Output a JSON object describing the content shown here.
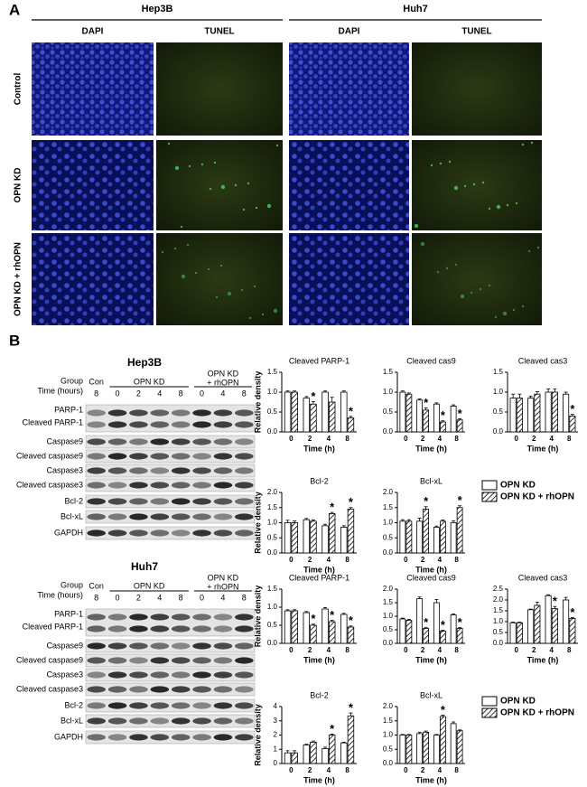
{
  "panel_a": {
    "label": "A",
    "cell_lines": [
      {
        "name": "Hep3B",
        "stains": [
          "DAPI",
          "TUNEL"
        ]
      },
      {
        "name": "Huh7",
        "stains": [
          "DAPI",
          "TUNEL"
        ]
      }
    ],
    "conditions": [
      "Control",
      "OPN KD",
      "OPN KD + rhOPN"
    ]
  },
  "panel_b": {
    "label": "B",
    "blots": [
      {
        "cell_line": "Hep3B",
        "group_label": "Group",
        "time_label": "Time (hours)",
        "groups": [
          [
            "Con"
          ],
          [
            "OPN KD"
          ],
          [
            "OPN KD",
            "+ rhOPN"
          ]
        ],
        "times": [
          "8",
          "0",
          "2",
          "4",
          "8",
          "0",
          "4",
          "8"
        ],
        "rows": [
          "PARP-1",
          "Cleaved PARP-1",
          "Caspase9",
          "Cleaved caspase9",
          "Caspase3",
          "Cleaved caspase3",
          "Bcl-2",
          "Bcl-xL",
          "GAPDH"
        ]
      },
      {
        "cell_line": "Huh7",
        "group_label": "Group",
        "time_label": "Time (hours)",
        "groups": [
          [
            "Con"
          ],
          [
            "OPN KD"
          ],
          [
            "OPN KD",
            "+ rhOPN"
          ]
        ],
        "times": [
          "8",
          "0",
          "2",
          "4",
          "8",
          "0",
          "4",
          "8"
        ],
        "rows": [
          "PARP-1",
          "Cleaved PARP-1",
          "Caspase9",
          "Cleaved caspase9",
          "Caspase3",
          "Cleaved caspase3",
          "Bcl-2",
          "Bcl-xL",
          "GAPDH"
        ]
      }
    ],
    "legends": [
      {
        "items": [
          "OPN KD",
          "OPN KD + rhOPN"
        ]
      },
      {
        "items": [
          "OPN KD",
          "OPN KD + rhOPN"
        ]
      }
    ]
  },
  "chart_data": [
    {
      "type": "bar",
      "title": "Cleaved PARP-1",
      "ylabel": "Relative density",
      "xlabel": "Time (h)",
      "categories": [
        "0",
        "2",
        "4",
        "8"
      ],
      "ylim": [
        0,
        1.5
      ],
      "yticks": [
        {
          "value": 0,
          "label": "0.0"
        },
        0.5,
        {
          "value": 1,
          "label": "1.0"
        },
        1.5
      ],
      "series": [
        {
          "color": "#ffffff",
          "hatch": false,
          "values": [
            1.0,
            0.85,
            1.0,
            1.0
          ],
          "errors": [
            0.03,
            0.04,
            0.03,
            0.03
          ]
        },
        {
          "color": "#ffffff",
          "hatch": true,
          "values": [
            1.0,
            0.7,
            0.75,
            0.35
          ],
          "errors": [
            0.03,
            0.06,
            0.12,
            0.04
          ],
          "stars": [
            null,
            "*",
            null,
            "*"
          ]
        }
      ]
    },
    {
      "type": "bar",
      "title": "Cleaved cas9",
      "xlabel": "Time (h)",
      "categories": [
        "0",
        "2",
        "4",
        "8"
      ],
      "ylim": [
        0,
        1.5
      ],
      "yticks": [
        {
          "value": 0,
          "label": "0.0"
        },
        0.5,
        {
          "value": 1,
          "label": "1.0"
        },
        1.5
      ],
      "series": [
        {
          "color": "#ffffff",
          "hatch": false,
          "values": [
            1.0,
            0.8,
            0.7,
            0.65
          ],
          "errors": [
            0.03,
            0.03,
            0.03,
            0.03
          ]
        },
        {
          "color": "#ffffff",
          "hatch": true,
          "values": [
            0.95,
            0.55,
            0.25,
            0.3
          ],
          "errors": [
            0.03,
            0.05,
            0.03,
            0.03
          ],
          "stars": [
            null,
            "*",
            "*",
            "*"
          ]
        }
      ]
    },
    {
      "type": "bar",
      "title": "Cleaved cas3",
      "xlabel": "Time (h)",
      "categories": [
        "0",
        "2",
        "4",
        "8"
      ],
      "ylim": [
        0,
        1.5
      ],
      "yticks": [
        {
          "value": 0,
          "label": "0.0"
        },
        0.5,
        {
          "value": 1,
          "label": "1.0"
        },
        1.5
      ],
      "series": [
        {
          "color": "#ffffff",
          "hatch": false,
          "values": [
            0.85,
            0.85,
            1.0,
            0.95
          ],
          "errors": [
            0.1,
            0.05,
            0.08,
            0.05
          ]
        },
        {
          "color": "#ffffff",
          "hatch": true,
          "values": [
            0.85,
            0.95,
            1.0,
            0.4
          ],
          "errors": [
            0.1,
            0.06,
            0.08,
            0.04
          ],
          "stars": [
            null,
            null,
            null,
            "*"
          ]
        }
      ]
    },
    {
      "type": "bar",
      "title": "Bcl-2",
      "ylabel": "Relative density",
      "xlabel": "Time (h)",
      "categories": [
        "0",
        "2",
        "4",
        "8"
      ],
      "ylim": [
        0,
        2
      ],
      "yticks": [
        {
          "value": 0,
          "label": "0.0"
        },
        0.5,
        {
          "value": 1,
          "label": "1.0"
        },
        1.5,
        {
          "value": 2,
          "label": "2.0"
        }
      ],
      "series": [
        {
          "color": "#ffffff",
          "hatch": false,
          "values": [
            1.0,
            1.1,
            0.9,
            0.85
          ],
          "errors": [
            0.08,
            0.04,
            0.05,
            0.05
          ]
        },
        {
          "color": "#ffffff",
          "hatch": true,
          "values": [
            1.0,
            1.05,
            1.3,
            1.45
          ],
          "errors": [
            0.06,
            0.04,
            0.04,
            0.05
          ],
          "stars": [
            null,
            null,
            "*",
            "*"
          ]
        }
      ]
    },
    {
      "type": "bar",
      "title": "Bcl-xL",
      "xlabel": "Time (h)",
      "categories": [
        "0",
        "2",
        "4",
        "8"
      ],
      "ylim": [
        0,
        2
      ],
      "yticks": [
        {
          "value": 0,
          "label": "0.0"
        },
        0.5,
        {
          "value": 1,
          "label": "1.0"
        },
        1.5,
        {
          "value": 2,
          "label": "2.0"
        }
      ],
      "series": [
        {
          "color": "#ffffff",
          "hatch": false,
          "values": [
            1.05,
            1.05,
            0.85,
            1.0
          ],
          "errors": [
            0.05,
            0.1,
            0.04,
            0.06
          ]
        },
        {
          "color": "#ffffff",
          "hatch": true,
          "values": [
            1.05,
            1.45,
            1.05,
            1.5
          ],
          "errors": [
            0.05,
            0.08,
            0.04,
            0.06
          ],
          "stars": [
            null,
            "*",
            null,
            "*"
          ]
        }
      ]
    },
    {
      "type": "bar",
      "title": "Cleaved PARP-1",
      "ylabel": "Relative density",
      "xlabel": "Time (h)",
      "categories": [
        "0",
        "2",
        "4",
        "8"
      ],
      "ylim": [
        0,
        1.5
      ],
      "yticks": [
        {
          "value": 0,
          "label": "0.0"
        },
        0.5,
        {
          "value": 1,
          "label": "1.0"
        },
        1.5
      ],
      "series": [
        {
          "color": "#ffffff",
          "hatch": false,
          "values": [
            0.9,
            0.85,
            0.95,
            0.8
          ],
          "errors": [
            0.03,
            0.03,
            0.04,
            0.03
          ]
        },
        {
          "color": "#ffffff",
          "hatch": true,
          "values": [
            0.9,
            0.5,
            0.6,
            0.45
          ],
          "errors": [
            0.03,
            0.03,
            0.04,
            0.03
          ],
          "stars": [
            null,
            "*",
            "*",
            "*"
          ]
        }
      ]
    },
    {
      "type": "bar",
      "title": "Cleaved cas9",
      "xlabel": "Time (h)",
      "categories": [
        "0",
        "2",
        "4",
        "8"
      ],
      "ylim": [
        0,
        2
      ],
      "yticks": [
        {
          "value": 0,
          "label": "0.0"
        },
        0.5,
        {
          "value": 1,
          "label": "1.0"
        },
        1.5,
        {
          "value": 2,
          "label": "2.0"
        }
      ],
      "series": [
        {
          "color": "#ffffff",
          "hatch": false,
          "values": [
            0.9,
            1.65,
            1.5,
            1.05
          ],
          "errors": [
            0.03,
            0.06,
            0.12,
            0.03
          ]
        },
        {
          "color": "#ffffff",
          "hatch": true,
          "values": [
            0.85,
            0.55,
            0.45,
            0.55
          ],
          "errors": [
            0.03,
            0.03,
            0.03,
            0.03
          ],
          "stars": [
            null,
            "*",
            "*",
            "*"
          ]
        }
      ]
    },
    {
      "type": "bar",
      "title": "Cleaved cas3",
      "xlabel": "Time (h)",
      "categories": [
        "0",
        "2",
        "4",
        "8"
      ],
      "ylim": [
        0,
        2.5
      ],
      "yticks": [
        {
          "value": 0,
          "label": "0.0"
        },
        0.5,
        {
          "value": 1,
          "label": "1.0"
        },
        1.5,
        {
          "value": 2,
          "label": "2.0"
        },
        2.5
      ],
      "series": [
        {
          "color": "#ffffff",
          "hatch": false,
          "values": [
            0.95,
            1.55,
            2.2,
            2.0
          ],
          "errors": [
            0.03,
            0.03,
            0.04,
            0.12
          ]
        },
        {
          "color": "#ffffff",
          "hatch": true,
          "values": [
            0.95,
            1.75,
            1.6,
            1.15
          ],
          "errors": [
            0.03,
            0.15,
            0.1,
            0.04
          ],
          "stars": [
            null,
            null,
            "*",
            "*"
          ]
        }
      ]
    },
    {
      "type": "bar",
      "title": "Bcl-2",
      "ylabel": "Relative density",
      "xlabel": "Time (h)",
      "categories": [
        "0",
        "2",
        "4",
        "8"
      ],
      "ylim": [
        0,
        4
      ],
      "yticks": [
        0,
        1,
        2,
        3,
        4
      ],
      "series": [
        {
          "color": "#ffffff",
          "hatch": false,
          "values": [
            0.75,
            1.3,
            1.05,
            1.45
          ],
          "errors": [
            0.15,
            0.05,
            0.1,
            0.05
          ]
        },
        {
          "color": "#ffffff",
          "hatch": true,
          "values": [
            0.75,
            1.5,
            2.0,
            3.35
          ],
          "errors": [
            0.15,
            0.08,
            0.06,
            0.2
          ],
          "stars": [
            null,
            null,
            "*",
            "*"
          ]
        }
      ]
    },
    {
      "type": "bar",
      "title": "Bcl-xL",
      "xlabel": "Time (h)",
      "categories": [
        "0",
        "2",
        "4",
        "8"
      ],
      "ylim": [
        0,
        2
      ],
      "yticks": [
        {
          "value": 0,
          "label": "0.0"
        },
        0.5,
        {
          "value": 1,
          "label": "1.0"
        },
        1.5,
        {
          "value": 2,
          "label": "2.0"
        }
      ],
      "series": [
        {
          "color": "#ffffff",
          "hatch": false,
          "values": [
            1.0,
            1.05,
            1.0,
            1.4
          ],
          "errors": [
            0.02,
            0.05,
            0.02,
            0.06
          ]
        },
        {
          "color": "#ffffff",
          "hatch": true,
          "values": [
            1.0,
            1.1,
            1.65,
            1.15
          ],
          "errors": [
            0.02,
            0.04,
            0.05,
            0.03
          ],
          "stars": [
            null,
            null,
            "*",
            null
          ]
        }
      ]
    }
  ]
}
